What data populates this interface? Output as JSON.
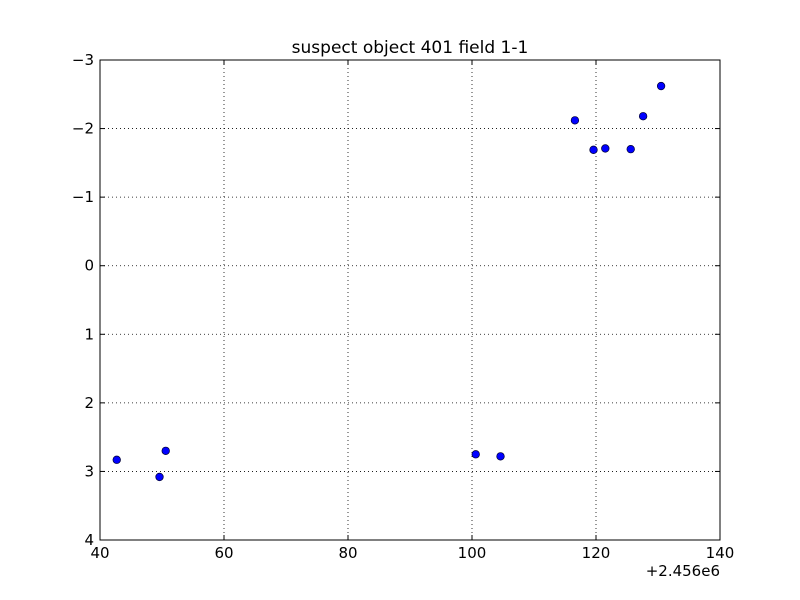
{
  "chart_data": {
    "type": "scatter",
    "title": "suspect object 401 field 1-1",
    "xlabel": "",
    "ylabel": "",
    "x_offset_label": "+2.456e6",
    "xlim": [
      2456040,
      2456140
    ],
    "ylim": [
      4,
      -3
    ],
    "y_inverted": true,
    "grid": true,
    "x_ticks": [
      2456040,
      2456060,
      2456080,
      2456100,
      2456120,
      2456140
    ],
    "x_tick_labels": [
      "40",
      "60",
      "80",
      "100",
      "120",
      "140"
    ],
    "y_ticks": [
      -3,
      -2,
      -1,
      0,
      1,
      2,
      3,
      4
    ],
    "y_tick_labels": [
      "−3",
      "−2",
      "−1",
      "0",
      "1",
      "2",
      "3",
      "4"
    ],
    "series": [
      {
        "color": "#0000ff",
        "marker": "circle",
        "points": [
          {
            "x": 2456042.7,
            "y": 2.83
          },
          {
            "x": 2456049.6,
            "y": 3.08
          },
          {
            "x": 2456050.6,
            "y": 2.7
          },
          {
            "x": 2456100.6,
            "y": 2.75
          },
          {
            "x": 2456104.6,
            "y": 2.78
          },
          {
            "x": 2456116.6,
            "y": -2.12
          },
          {
            "x": 2456119.6,
            "y": -1.69
          },
          {
            "x": 2456121.5,
            "y": -1.71
          },
          {
            "x": 2456125.6,
            "y": -1.7
          },
          {
            "x": 2456127.6,
            "y": -2.18
          },
          {
            "x": 2456130.5,
            "y": -2.62
          }
        ]
      }
    ]
  }
}
